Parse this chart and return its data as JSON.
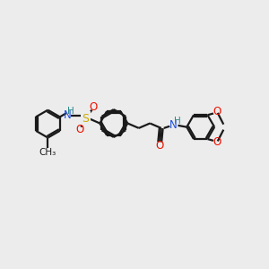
{
  "bg_color": "#ececec",
  "bond_color": "#1a1a1a",
  "atom_colors": {
    "N": "#1e4fe0",
    "O": "#ee1100",
    "S": "#ccaa00",
    "H": "#2a8888"
  },
  "line_width": 1.6,
  "font_size": 8.5,
  "fig_w": 3.0,
  "fig_h": 3.0,
  "dpi": 100
}
